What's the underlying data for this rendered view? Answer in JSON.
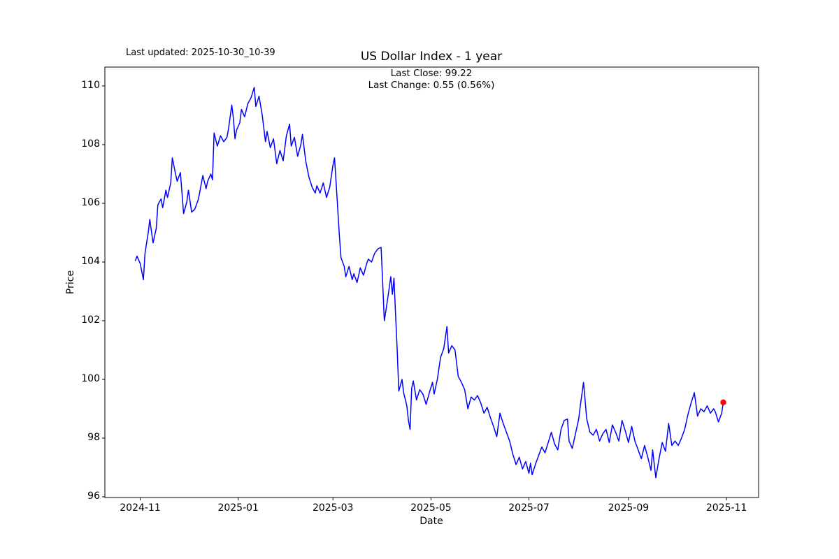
{
  "figure": {
    "background_color": "#ffffff"
  },
  "annotations": {
    "last_updated": "Last updated: 2025-10-30_10-39",
    "last_close": "Last Close: 99.22",
    "last_change": "Last Change: 0.55 (0.56%)"
  },
  "chart_data": {
    "type": "line",
    "title": "US Dollar Index - 1 year",
    "xlabel": "Date",
    "ylabel": "Price",
    "grid": false,
    "legend": "none",
    "line_color": "#0000ff",
    "marker_color": "#ff0000",
    "axes_color": "#000000",
    "x_axis": {
      "unit": "days since 2024-10-29",
      "range": [
        -19,
        388
      ],
      "ticks": [
        {
          "label": "2024-11",
          "day": 3
        },
        {
          "label": "2025-01",
          "day": 64
        },
        {
          "label": "2025-03",
          "day": 123
        },
        {
          "label": "2025-05",
          "day": 184
        },
        {
          "label": "2025-07",
          "day": 245
        },
        {
          "label": "2025-09",
          "day": 307
        },
        {
          "label": "2025-11",
          "day": 368
        }
      ]
    },
    "y_axis": {
      "range": [
        95.976,
        110.643
      ],
      "ticks": [
        96,
        98,
        100,
        102,
        104,
        106,
        108,
        110
      ]
    },
    "last_point": {
      "day": 366,
      "value": 99.22
    },
    "series": [
      {
        "name": "US Dollar Index",
        "color": "#0000ff",
        "x_days": [
          0,
          1,
          3,
          5,
          6,
          8,
          9,
          11,
          13,
          14,
          16,
          17,
          19,
          20,
          22,
          23,
          25,
          26,
          28,
          29,
          30,
          32,
          33,
          35,
          37,
          39,
          40,
          42,
          44,
          45,
          47,
          48,
          49,
          51,
          53,
          55,
          57,
          58,
          60,
          61,
          62,
          63,
          65,
          66,
          68,
          70,
          72,
          74,
          75,
          77,
          79,
          81,
          82,
          84,
          86,
          88,
          90,
          92,
          94,
          96,
          97,
          99,
          101,
          103,
          104,
          106,
          108,
          110,
          112,
          113,
          115,
          117,
          119,
          121,
          123,
          124,
          126,
          127,
          128,
          130,
          131,
          133,
          135,
          136,
          138,
          140,
          142,
          144,
          145,
          147,
          149,
          151,
          153,
          155,
          156,
          158,
          159,
          160,
          161,
          162,
          163,
          164,
          166,
          167,
          169,
          170,
          171,
          172,
          173,
          175,
          177,
          179,
          181,
          183,
          185,
          186,
          188,
          190,
          192,
          194,
          195,
          197,
          199,
          201,
          203,
          205,
          207,
          209,
          211,
          213,
          215,
          217,
          219,
          221,
          223,
          225,
          227,
          229,
          231,
          233,
          235,
          237,
          239,
          241,
          243,
          245,
          246,
          247,
          249,
          251,
          253,
          255,
          257,
          259,
          261,
          263,
          265,
          267,
          269,
          270,
          272,
          274,
          276,
          277,
          279,
          281,
          283,
          285,
          287,
          289,
          291,
          293,
          295,
          297,
          299,
          301,
          303,
          305,
          307,
          309,
          311,
          313,
          315,
          317,
          319,
          321,
          322,
          324,
          326,
          328,
          330,
          332,
          334,
          336,
          338,
          340,
          342,
          344,
          346,
          348,
          350,
          352,
          354,
          356,
          358,
          360,
          361,
          363,
          365,
          366
        ],
        "values": [
          104.05,
          104.2,
          103.95,
          103.4,
          104.3,
          105.0,
          105.45,
          104.65,
          105.15,
          105.95,
          106.15,
          105.85,
          106.45,
          106.2,
          106.7,
          107.55,
          107.0,
          106.75,
          107.05,
          106.35,
          105.65,
          106.05,
          106.45,
          105.7,
          105.8,
          106.1,
          106.35,
          106.95,
          106.5,
          106.75,
          107.0,
          106.8,
          108.4,
          107.95,
          108.3,
          108.1,
          108.25,
          108.55,
          109.35,
          108.9,
          108.2,
          108.5,
          108.75,
          109.2,
          108.95,
          109.4,
          109.6,
          109.95,
          109.3,
          109.65,
          109.0,
          108.1,
          108.45,
          107.9,
          108.2,
          107.35,
          107.8,
          107.45,
          108.3,
          108.7,
          107.95,
          108.25,
          107.6,
          108.0,
          108.35,
          107.45,
          106.9,
          106.55,
          106.35,
          106.6,
          106.35,
          106.7,
          106.2,
          106.55,
          107.3,
          107.55,
          105.8,
          104.9,
          104.15,
          103.85,
          103.5,
          103.85,
          103.4,
          103.6,
          103.3,
          103.8,
          103.55,
          103.95,
          104.1,
          104.0,
          104.3,
          104.45,
          104.5,
          102.0,
          102.35,
          103.1,
          103.5,
          102.9,
          103.45,
          102.2,
          101.0,
          99.6,
          100.0,
          99.55,
          99.1,
          98.6,
          98.3,
          99.7,
          99.95,
          99.3,
          99.65,
          99.5,
          99.15,
          99.55,
          99.9,
          99.5,
          100.0,
          100.75,
          101.05,
          101.8,
          100.9,
          101.15,
          101.0,
          100.1,
          99.9,
          99.65,
          99.0,
          99.4,
          99.3,
          99.45,
          99.2,
          98.85,
          99.05,
          98.7,
          98.4,
          98.05,
          98.85,
          98.5,
          98.2,
          97.9,
          97.45,
          97.1,
          97.35,
          96.95,
          97.2,
          96.8,
          97.15,
          96.75,
          97.1,
          97.4,
          97.7,
          97.5,
          97.85,
          98.2,
          97.8,
          97.6,
          98.3,
          98.6,
          98.65,
          97.9,
          97.65,
          98.15,
          98.65,
          99.1,
          99.9,
          98.65,
          98.2,
          98.1,
          98.3,
          97.9,
          98.15,
          98.3,
          97.85,
          98.45,
          98.2,
          97.9,
          98.6,
          98.25,
          97.85,
          98.4,
          97.9,
          97.6,
          97.3,
          97.75,
          97.35,
          96.9,
          97.6,
          96.65,
          97.3,
          97.85,
          97.55,
          98.5,
          97.75,
          97.9,
          97.75,
          98.0,
          98.3,
          98.8,
          99.2,
          99.55,
          98.75,
          99.0,
          98.9,
          99.1,
          98.85,
          99.0,
          98.9,
          98.55,
          98.85,
          99.22
        ]
      }
    ]
  }
}
